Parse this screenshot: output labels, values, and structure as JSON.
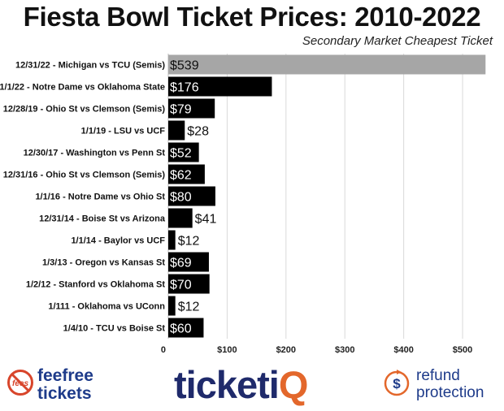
{
  "header": {
    "title": "Fiesta Bowl Ticket Prices: 2010-2022",
    "subtitle": "Secondary Market Cheapest Ticket"
  },
  "chart_data": {
    "type": "bar",
    "orientation": "horizontal",
    "title": "Fiesta Bowl Ticket Prices: 2010-2022",
    "subtitle": "Secondary Market Cheapest Ticket",
    "categories": [
      "12/31/22 - Michigan vs TCU (Semis)",
      "1/1/22 - Notre Dame vs Oklahoma State",
      "12/28/19 - Ohio St vs Clemson (Semis)",
      "1/1/19 - LSU vs UCF",
      "12/30/17 - Washington vs Penn St",
      "12/31/16 - Ohio St vs Clemson (Semis)",
      "1/1/16 - Notre Dame vs Ohio St",
      "12/31/14 - Boise St vs Arizona",
      "1/1/14 - Baylor vs UCF",
      "1/3/13 - Oregon vs Kansas St",
      "1/2/12 - Stanford vs Oklahoma St",
      "1/111 - Oklahoma vs UConn",
      "1/4/10 - TCU vs Boise St"
    ],
    "values": [
      539,
      176,
      79,
      28,
      52,
      62,
      80,
      41,
      12,
      69,
      70,
      12,
      60
    ],
    "value_labels": [
      "$539",
      "$176",
      "$79",
      "$28",
      "$52",
      "$62",
      "$80",
      "$41",
      "$12",
      "$69",
      "$70",
      "$12",
      "$60"
    ],
    "highlight_index": 0,
    "xlim": [
      0,
      540
    ],
    "xticks": [
      0,
      100,
      200,
      300,
      400,
      500
    ],
    "xtick_labels": [
      "0",
      "$100",
      "$200",
      "$300",
      "$400",
      "$500"
    ],
    "grid": true,
    "colors": {
      "bar": "#000000",
      "highlight": "#a6a6a6",
      "grid": "#d9d9d9"
    }
  },
  "footer": {
    "feefree": {
      "line1": "feefree",
      "line2": "tickets",
      "icon_text": "fees"
    },
    "ticketiq": {
      "main": "ticketi",
      "accent": "Q"
    },
    "refund": {
      "line1": "refund",
      "line2": "protection",
      "icon_text": "$"
    },
    "colors": {
      "navy": "#1e3b8a",
      "orange": "#e3672b",
      "red": "#d8452b"
    }
  }
}
